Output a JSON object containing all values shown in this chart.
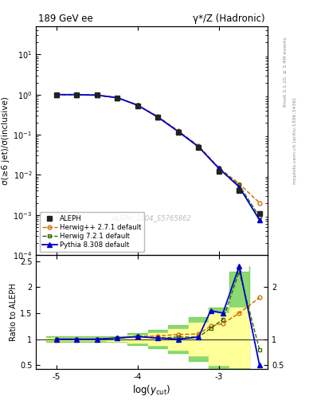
{
  "title_left": "189 GeV ee",
  "title_right": "γ*/Z (Hadronic)",
  "ylabel_main": "σ(≥6 jet)/σ(inclusive)",
  "ylabel_ratio": "Ratio to ALEPH",
  "xlabel": "log(y_{cut})",
  "right_label_top": "Rivet 3.1.10, ≥ 3.4M events",
  "right_label_bottom": "mcplots.cern.ch [arXiv:1306.3436]",
  "watermark": "ALEPH_2004_S5765862",
  "xmin": -5.25,
  "xmax": -2.4,
  "aleph_x": [
    -5.0,
    -4.75,
    -4.5,
    -4.25,
    -4.0,
    -3.75,
    -3.5,
    -3.25,
    -3.0,
    -2.75,
    -2.5
  ],
  "aleph_y": [
    1.0,
    1.0,
    0.97,
    0.82,
    0.52,
    0.27,
    0.115,
    0.048,
    0.012,
    0.004,
    0.0011
  ],
  "herwigpp_x": [
    -5.0,
    -4.75,
    -4.5,
    -4.25,
    -4.0,
    -3.75,
    -3.5,
    -3.25,
    -3.0,
    -2.75,
    -2.5
  ],
  "herwigpp_y": [
    1.0,
    1.0,
    0.97,
    0.84,
    0.55,
    0.285,
    0.125,
    0.053,
    0.015,
    0.006,
    0.002
  ],
  "herwig_x": [
    -5.0,
    -4.75,
    -4.5,
    -4.25,
    -4.0,
    -3.75,
    -3.5,
    -3.25,
    -3.0,
    -2.75,
    -2.5
  ],
  "herwig_y": [
    1.0,
    1.0,
    0.97,
    0.84,
    0.545,
    0.275,
    0.12,
    0.05,
    0.0145,
    0.0055,
    0.0009
  ],
  "pythia_x": [
    -5.0,
    -4.75,
    -4.5,
    -4.25,
    -4.0,
    -3.75,
    -3.5,
    -3.25,
    -3.0,
    -2.75,
    -2.5
  ],
  "pythia_y": [
    1.0,
    1.0,
    0.97,
    0.84,
    0.545,
    0.275,
    0.12,
    0.05,
    0.0145,
    0.005,
    0.00075
  ],
  "ratio_x": [
    -5.0,
    -4.75,
    -4.5,
    -4.25,
    -4.0,
    -3.75,
    -3.5,
    -3.25,
    -3.1,
    -2.95,
    -2.75,
    -2.5
  ],
  "ratio_herwigpp_y": [
    1.0,
    1.0,
    1.0,
    1.02,
    1.05,
    1.06,
    1.09,
    1.1,
    1.25,
    1.3,
    1.5,
    1.8
  ],
  "ratio_herwig_y": [
    1.0,
    1.0,
    1.0,
    1.02,
    1.05,
    1.02,
    1.04,
    1.04,
    1.21,
    1.38,
    2.3,
    0.8
  ],
  "ratio_pythia_y": [
    1.0,
    1.0,
    1.0,
    1.02,
    1.05,
    1.02,
    1.0,
    1.04,
    1.55,
    1.5,
    2.4,
    0.5
  ],
  "band_x_edges": [
    -5.125,
    -4.875,
    -4.625,
    -4.375,
    -4.125,
    -3.875,
    -3.625,
    -3.375,
    -3.125,
    -2.875,
    -2.625
  ],
  "band_green_lo": [
    0.95,
    0.95,
    0.95,
    0.94,
    0.88,
    0.82,
    0.73,
    0.58,
    0.4,
    0.3,
    0.4
  ],
  "band_green_hi": [
    1.05,
    1.05,
    1.05,
    1.06,
    1.12,
    1.18,
    1.27,
    1.42,
    1.6,
    2.3,
    2.4
  ],
  "band_yellow_lo": [
    0.98,
    0.98,
    0.98,
    0.97,
    0.93,
    0.88,
    0.8,
    0.68,
    0.5,
    0.45,
    0.5
  ],
  "band_yellow_hi": [
    1.02,
    1.02,
    1.02,
    1.03,
    1.07,
    1.12,
    1.2,
    1.32,
    1.5,
    1.6,
    1.6
  ],
  "aleph_color": "#222222",
  "herwigpp_color": "#cc6600",
  "herwig_color": "#336600",
  "pythia_color": "#0000cc",
  "green_band_color": "#66cc44",
  "yellow_band_color": "#ffff99",
  "ylim_main": [
    0.0001,
    50
  ],
  "ylim_ratio": [
    0.42,
    2.62
  ],
  "legend_entries": [
    "ALEPH",
    "Herwig++ 2.7.1 default",
    "Herwig 7.2.1 default",
    "Pythia 8.308 default"
  ]
}
